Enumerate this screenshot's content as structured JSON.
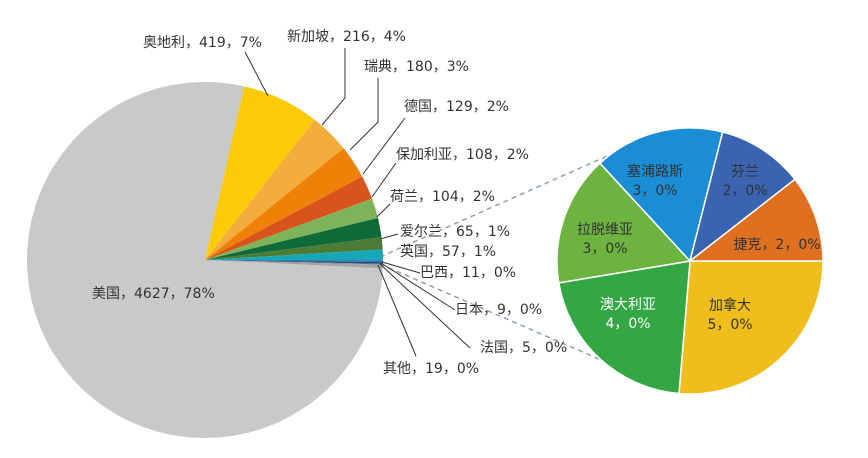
{
  "chart_data": [
    {
      "type": "pie",
      "values": [
        4627,
        419,
        216,
        180,
        129,
        108,
        104,
        65,
        57,
        11,
        9,
        5,
        19
      ],
      "value_labels": [
        "美国，4627，78%",
        "奥地利，419，7%",
        "新加坡，216，4%",
        "瑞典，180，3%",
        "德国，129，2%",
        "保加利亚，108，2%",
        "荷兰，104，2%",
        "爱尔兰，65，1%",
        "英国，57，1%",
        "巴西，11，0%",
        "日本，9，0%",
        "法国，5，0%",
        "其他，19，0%"
      ],
      "colors": [
        "#c8c9c9",
        "#fbcb07",
        "#f4ac3c",
        "#ee8208",
        "#d9541c",
        "#7eb35a",
        "#0f6a3a",
        "#4d7a34",
        "#17a8b8",
        "#2f75b5",
        "#1f4e79",
        "#7f7f7f",
        "#a5a5a5"
      ]
    },
    {
      "type": "pie",
      "values": [
        5,
        4,
        3,
        3,
        2,
        2
      ],
      "value_labels": [
        [
          "加拿大",
          "5，0%"
        ],
        [
          "澳大利亚",
          "4，0%"
        ],
        [
          "拉脱维亚",
          "3，0%"
        ],
        [
          "塞浦路斯",
          "3，0%"
        ],
        [
          "芬兰",
          "2，0%"
        ],
        [
          "捷克，2，0%"
        ]
      ],
      "colors": [
        "#efbd1c",
        "#33a744",
        "#6db33f",
        "#1a8dd5",
        "#3a63b0",
        "#df7020"
      ]
    }
  ]
}
